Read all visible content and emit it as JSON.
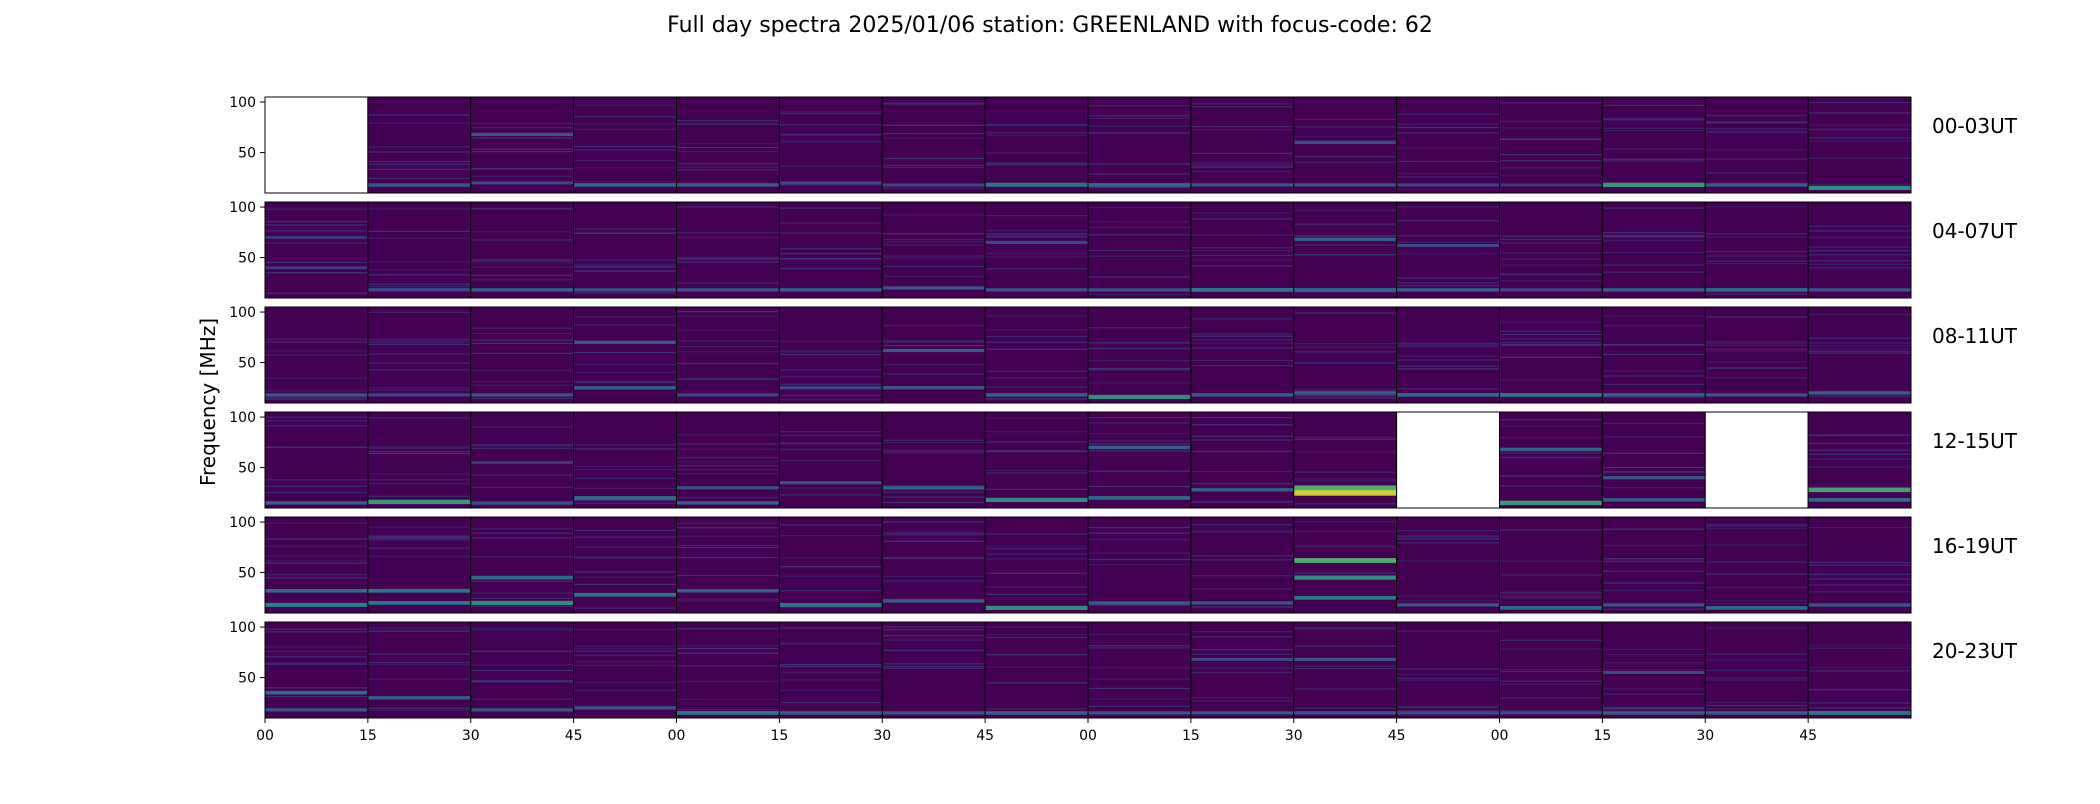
{
  "chart_data": {
    "type": "heatmap",
    "title": "Full day spectra 2025/01/06 station: GREENLAND with focus-code: 62",
    "ylabel": "Frequency [MHz]",
    "xlabel": "",
    "ylim": [
      10,
      105
    ],
    "yticks": [
      50,
      100
    ],
    "xtick_labels": [
      "00",
      "15",
      "30",
      "45",
      "00",
      "15",
      "30",
      "45",
      "00",
      "15",
      "30",
      "45",
      "00",
      "15",
      "30",
      "45"
    ],
    "colormap": "viridis",
    "colors": {
      "low": "#440154",
      "mid": "#31688e",
      "high": "#35b779",
      "peak": "#b5de2b",
      "empty": "#ffffff",
      "frame": "#000000"
    },
    "rows": [
      {
        "label": "00-03UT",
        "panels": [
          {
            "missing": true,
            "bands": []
          },
          {
            "missing": false,
            "bands": [
              [
                18,
                0.3
              ]
            ]
          },
          {
            "missing": false,
            "bands": [
              [
                68,
                0.3
              ],
              [
                20,
                0.25
              ]
            ]
          },
          {
            "missing": false,
            "bands": [
              [
                18,
                0.4
              ]
            ]
          },
          {
            "missing": false,
            "bands": [
              [
                18,
                0.35
              ]
            ]
          },
          {
            "missing": false,
            "bands": [
              [
                20,
                0.25
              ]
            ]
          },
          {
            "missing": false,
            "bands": [
              [
                18,
                0.25
              ]
            ]
          },
          {
            "missing": false,
            "bands": [
              [
                18,
                0.45
              ]
            ]
          },
          {
            "missing": false,
            "bands": [
              [
                18,
                0.4
              ]
            ]
          },
          {
            "missing": false,
            "bands": [
              [
                18,
                0.3
              ]
            ]
          },
          {
            "missing": false,
            "bands": [
              [
                60,
                0.25
              ],
              [
                18,
                0.3
              ]
            ]
          },
          {
            "missing": false,
            "bands": [
              [
                18,
                0.25
              ]
            ]
          },
          {
            "missing": false,
            "bands": [
              [
                18,
                0.2
              ]
            ]
          },
          {
            "missing": false,
            "bands": [
              [
                18,
                0.6
              ]
            ]
          },
          {
            "missing": false,
            "bands": [
              [
                18,
                0.35
              ]
            ]
          },
          {
            "missing": false,
            "bands": [
              [
                15,
                0.55
              ]
            ]
          }
        ]
      },
      {
        "label": "04-07UT",
        "panels": [
          {
            "missing": false,
            "bands": [
              [
                70,
                0.2
              ],
              [
                40,
                0.2
              ]
            ]
          },
          {
            "missing": false,
            "bands": [
              [
                18,
                0.25
              ]
            ]
          },
          {
            "missing": false,
            "bands": [
              [
                18,
                0.35
              ]
            ]
          },
          {
            "missing": false,
            "bands": [
              [
                18,
                0.3
              ]
            ]
          },
          {
            "missing": false,
            "bands": [
              [
                18,
                0.3
              ]
            ]
          },
          {
            "missing": false,
            "bands": [
              [
                18,
                0.35
              ]
            ]
          },
          {
            "missing": false,
            "bands": [
              [
                20,
                0.3
              ]
            ]
          },
          {
            "missing": false,
            "bands": [
              [
                65,
                0.25
              ],
              [
                18,
                0.3
              ]
            ]
          },
          {
            "missing": false,
            "bands": [
              [
                18,
                0.3
              ]
            ]
          },
          {
            "missing": false,
            "bands": [
              [
                18,
                0.45
              ]
            ]
          },
          {
            "missing": false,
            "bands": [
              [
                68,
                0.35
              ],
              [
                18,
                0.4
              ]
            ]
          },
          {
            "missing": false,
            "bands": [
              [
                62,
                0.25
              ],
              [
                18,
                0.35
              ]
            ]
          },
          {
            "missing": false,
            "bands": [
              [
                18,
                0.25
              ]
            ]
          },
          {
            "missing": false,
            "bands": [
              [
                18,
                0.35
              ]
            ]
          },
          {
            "missing": false,
            "bands": [
              [
                18,
                0.4
              ]
            ]
          },
          {
            "missing": false,
            "bands": [
              [
                18,
                0.3
              ]
            ]
          }
        ]
      },
      {
        "label": "08-11UT",
        "panels": [
          {
            "missing": false,
            "bands": [
              [
                18,
                0.3
              ]
            ]
          },
          {
            "missing": false,
            "bands": [
              [
                18,
                0.25
              ]
            ]
          },
          {
            "missing": false,
            "bands": [
              [
                18,
                0.3
              ]
            ]
          },
          {
            "missing": false,
            "bands": [
              [
                70,
                0.3
              ],
              [
                25,
                0.35
              ]
            ]
          },
          {
            "missing": false,
            "bands": [
              [
                18,
                0.25
              ]
            ]
          },
          {
            "missing": false,
            "bands": [
              [
                25,
                0.25
              ]
            ]
          },
          {
            "missing": false,
            "bands": [
              [
                62,
                0.3
              ],
              [
                25,
                0.3
              ]
            ]
          },
          {
            "missing": false,
            "bands": [
              [
                18,
                0.35
              ]
            ]
          },
          {
            "missing": false,
            "bands": [
              [
                16,
                0.55
              ]
            ]
          },
          {
            "missing": false,
            "bands": [
              [
                18,
                0.35
              ]
            ]
          },
          {
            "missing": false,
            "bands": [
              [
                20,
                0.35
              ]
            ]
          },
          {
            "missing": false,
            "bands": [
              [
                18,
                0.4
              ]
            ]
          },
          {
            "missing": false,
            "bands": [
              [
                18,
                0.45
              ]
            ]
          },
          {
            "missing": false,
            "bands": [
              [
                18,
                0.35
              ]
            ]
          },
          {
            "missing": false,
            "bands": [
              [
                18,
                0.3
              ]
            ]
          },
          {
            "missing": false,
            "bands": [
              [
                20,
                0.35
              ]
            ]
          }
        ]
      },
      {
        "label": "12-15UT",
        "panels": [
          {
            "missing": false,
            "bands": [
              [
                15,
                0.35
              ]
            ]
          },
          {
            "missing": false,
            "bands": [
              [
                16,
                0.6
              ]
            ]
          },
          {
            "missing": false,
            "bands": [
              [
                55,
                0.2
              ],
              [
                15,
                0.25
              ]
            ]
          },
          {
            "missing": false,
            "bands": [
              [
                20,
                0.4
              ]
            ]
          },
          {
            "missing": false,
            "bands": [
              [
                30,
                0.3
              ],
              [
                15,
                0.35
              ]
            ]
          },
          {
            "missing": false,
            "bands": [
              [
                35,
                0.3
              ]
            ]
          },
          {
            "missing": false,
            "bands": [
              [
                30,
                0.35
              ]
            ]
          },
          {
            "missing": false,
            "bands": [
              [
                18,
                0.55
              ]
            ]
          },
          {
            "missing": false,
            "bands": [
              [
                70,
                0.35
              ],
              [
                20,
                0.4
              ]
            ]
          },
          {
            "missing": false,
            "bands": [
              [
                28,
                0.35
              ]
            ]
          },
          {
            "missing": false,
            "bands": [
              [
                25,
                0.95
              ],
              [
                30,
                0.7
              ]
            ]
          },
          {
            "missing": true,
            "bands": []
          },
          {
            "missing": false,
            "bands": [
              [
                68,
                0.35
              ],
              [
                15,
                0.6
              ]
            ]
          },
          {
            "missing": false,
            "bands": [
              [
                40,
                0.3
              ],
              [
                18,
                0.35
              ]
            ]
          },
          {
            "missing": true,
            "bands": []
          },
          {
            "missing": false,
            "bands": [
              [
                28,
                0.65
              ],
              [
                18,
                0.4
              ]
            ]
          }
        ]
      },
      {
        "label": "16-19UT",
        "panels": [
          {
            "missing": false,
            "bands": [
              [
                18,
                0.5
              ],
              [
                32,
                0.4
              ]
            ]
          },
          {
            "missing": false,
            "bands": [
              [
                20,
                0.45
              ],
              [
                32,
                0.45
              ]
            ]
          },
          {
            "missing": false,
            "bands": [
              [
                45,
                0.4
              ],
              [
                20,
                0.55
              ]
            ]
          },
          {
            "missing": false,
            "bands": [
              [
                28,
                0.45
              ]
            ]
          },
          {
            "missing": false,
            "bands": [
              [
                32,
                0.35
              ]
            ]
          },
          {
            "missing": false,
            "bands": [
              [
                18,
                0.45
              ]
            ]
          },
          {
            "missing": false,
            "bands": [
              [
                22,
                0.35
              ]
            ]
          },
          {
            "missing": false,
            "bands": [
              [
                15,
                0.55
              ]
            ]
          },
          {
            "missing": false,
            "bands": [
              [
                20,
                0.35
              ]
            ]
          },
          {
            "missing": false,
            "bands": [
              [
                20,
                0.3
              ]
            ]
          },
          {
            "missing": false,
            "bands": [
              [
                62,
                0.7
              ],
              [
                45,
                0.55
              ],
              [
                25,
                0.45
              ]
            ]
          },
          {
            "missing": false,
            "bands": [
              [
                18,
                0.3
              ]
            ]
          },
          {
            "missing": false,
            "bands": [
              [
                15,
                0.4
              ]
            ]
          },
          {
            "missing": false,
            "bands": [
              [
                18,
                0.3
              ]
            ]
          },
          {
            "missing": false,
            "bands": [
              [
                15,
                0.4
              ]
            ]
          },
          {
            "missing": false,
            "bands": [
              [
                18,
                0.3
              ]
            ]
          }
        ]
      },
      {
        "label": "20-23UT",
        "panels": [
          {
            "missing": false,
            "bands": [
              [
                35,
                0.4
              ],
              [
                18,
                0.3
              ]
            ]
          },
          {
            "missing": false,
            "bands": [
              [
                30,
                0.35
              ]
            ]
          },
          {
            "missing": false,
            "bands": [
              [
                18,
                0.3
              ]
            ]
          },
          {
            "missing": false,
            "bands": [
              [
                20,
                0.3
              ]
            ]
          },
          {
            "missing": false,
            "bands": [
              [
                15,
                0.45
              ]
            ]
          },
          {
            "missing": false,
            "bands": [
              [
                15,
                0.35
              ]
            ]
          },
          {
            "missing": false,
            "bands": [
              [
                15,
                0.3
              ]
            ]
          },
          {
            "missing": false,
            "bands": [
              [
                15,
                0.35
              ]
            ]
          },
          {
            "missing": false,
            "bands": [
              [
                15,
                0.3
              ]
            ]
          },
          {
            "missing": false,
            "bands": [
              [
                68,
                0.25
              ],
              [
                15,
                0.3
              ]
            ]
          },
          {
            "missing": false,
            "bands": [
              [
                68,
                0.3
              ],
              [
                15,
                0.3
              ]
            ]
          },
          {
            "missing": false,
            "bands": [
              [
                15,
                0.25
              ]
            ]
          },
          {
            "missing": false,
            "bands": [
              [
                15,
                0.25
              ]
            ]
          },
          {
            "missing": false,
            "bands": [
              [
                55,
                0.25
              ],
              [
                15,
                0.35
              ]
            ]
          },
          {
            "missing": false,
            "bands": [
              [
                15,
                0.35
              ]
            ]
          },
          {
            "missing": false,
            "bands": [
              [
                15,
                0.45
              ]
            ]
          }
        ]
      }
    ]
  }
}
